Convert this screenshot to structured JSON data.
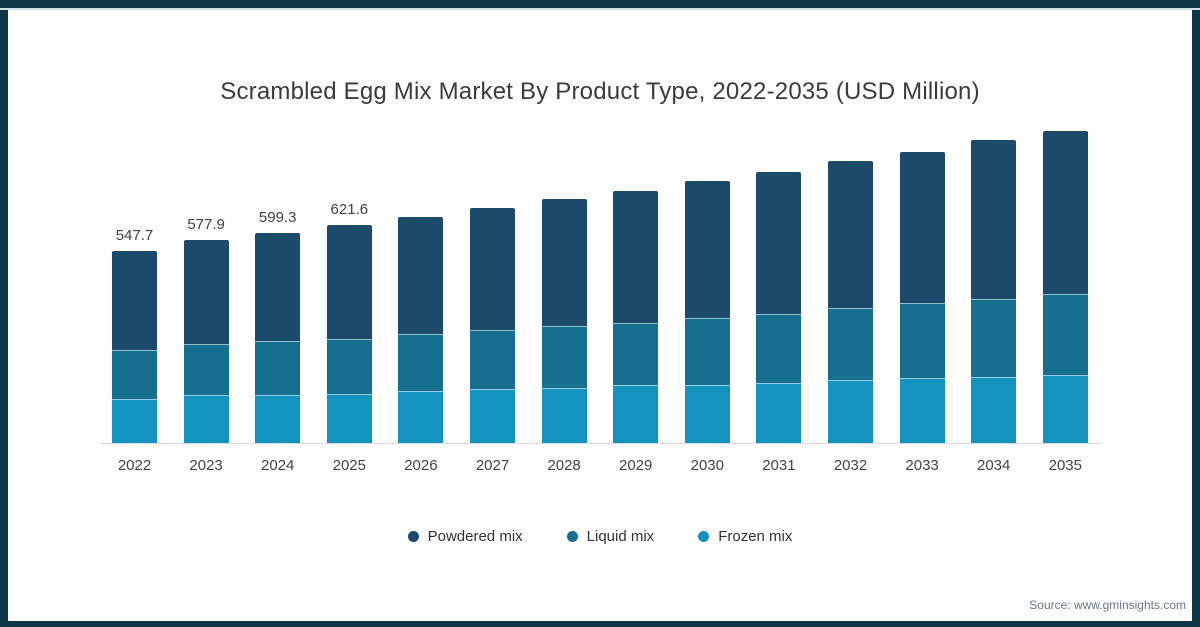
{
  "title": "Scrambled Egg Mix Market By Product Type, 2022-2035 (USD Million)",
  "source": "Source: www.gminsights.com",
  "colors": {
    "powdered": "#1b4a6b",
    "liquid": "#166f8e",
    "frozen": "#1593bf",
    "frame": "#0d3747",
    "frame_accent": "#cde0e8",
    "axis_line": "#d9d9d9",
    "value_text": "#404040",
    "tick_text": "#444444",
    "source_text": "#667784"
  },
  "legend": [
    {
      "label": "Powdered mix",
      "color": "#1b4a6b"
    },
    {
      "label": "Liquid mix",
      "color": "#166f8e"
    },
    {
      "label": "Frozen mix",
      "color": "#1593bf"
    }
  ],
  "chart_data": {
    "type": "bar",
    "stacked": true,
    "title": "Scrambled Egg Mix Market By Product Type, 2022-2035 (USD Million)",
    "xlabel": "",
    "ylabel": "USD Million",
    "legend_position": "bottom",
    "grid": false,
    "categories": [
      "2022",
      "2023",
      "2024",
      "2025",
      "2026",
      "2027",
      "2028",
      "2029",
      "2030",
      "2031",
      "2032",
      "2033",
      "2034",
      "2035"
    ],
    "series": [
      {
        "name": "Powdered mix",
        "color": "#1b4a6b",
        "values": [
          282.0,
          296.0,
          309.6,
          323.6,
          335.0,
          346.5,
          360.7,
          374.9,
          389.1,
          403.3,
          417.5,
          428.8,
          451.6,
          467.0
        ]
      },
      {
        "name": "Liquid mix",
        "color": "#166f8e",
        "values": [
          140.0,
          145.6,
          153.4,
          159.0,
          162.1,
          170.3,
          178.9,
          178.9,
          191.7,
          198.8,
          207.3,
          215.8,
          224.4,
          230.3
        ]
      },
      {
        "name": "Frozen mix",
        "color": "#1593bf",
        "values": [
          125.7,
          136.3,
          136.3,
          139.0,
          147.7,
          153.4,
          156.2,
          164.7,
          166.1,
          170.4,
          178.9,
          184.7,
          187.4,
          193.9
        ]
      }
    ],
    "totals": [
      547.7,
      577.9,
      599.3,
      621.6,
      644.8,
      670.2,
      695.8,
      718.5,
      746.9,
      772.5,
      803.7,
      829.3,
      863.4,
      891.2
    ],
    "bar_labels": [
      "547.7",
      "577.9",
      "599.3",
      "621.6",
      "",
      "",
      "",
      "",
      "",
      "",
      "",
      "",
      "",
      ""
    ]
  }
}
